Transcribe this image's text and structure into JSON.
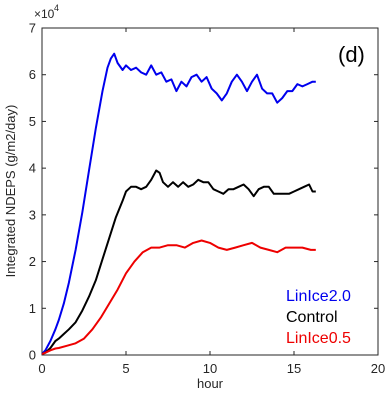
{
  "chart_data": {
    "type": "line",
    "panel_label": "(d)",
    "xlabel": "hour",
    "ylabel": "Integrated NDEPS (g/m2/day)",
    "exponent_label": "×10",
    "exponent_power": "4",
    "xlim": [
      0,
      20
    ],
    "ylim": [
      0,
      7
    ],
    "x_ticks": [
      0,
      5,
      10,
      15,
      20
    ],
    "x_tick_labels": [
      "0",
      "5",
      "10",
      "15",
      "20"
    ],
    "y_ticks": [
      0,
      1,
      2,
      3,
      4,
      5,
      6,
      7
    ],
    "y_tick_labels": [
      "0",
      "1",
      "2",
      "3",
      "4",
      "5",
      "6",
      "7"
    ],
    "y_unit_multiplier": 10000,
    "grid": false,
    "legend_position": "bottom-right",
    "series": [
      {
        "name": "LinIce2.0",
        "color": "#0000ee",
        "x": [
          0,
          0.2,
          0.5,
          0.8,
          1.0,
          1.3,
          1.6,
          2.0,
          2.4,
          2.8,
          3.2,
          3.6,
          3.9,
          4.1,
          4.3,
          4.5,
          4.8,
          5.0,
          5.3,
          5.6,
          5.9,
          6.2,
          6.5,
          6.8,
          7.1,
          7.4,
          7.7,
          8.0,
          8.3,
          8.6,
          8.9,
          9.2,
          9.5,
          9.8,
          10.1,
          10.4,
          10.7,
          11.0,
          11.3,
          11.6,
          11.9,
          12.2,
          12.5,
          12.8,
          13.1,
          13.4,
          13.7,
          14.0,
          14.3,
          14.6,
          14.9,
          15.2,
          15.5,
          15.8,
          16.1,
          16.3
        ],
        "values": [
          0.02,
          0.1,
          0.3,
          0.55,
          0.75,
          1.1,
          1.55,
          2.25,
          3.05,
          3.95,
          4.85,
          5.65,
          6.15,
          6.35,
          6.45,
          6.25,
          6.1,
          6.2,
          6.1,
          6.15,
          6.05,
          6.0,
          6.2,
          6.0,
          6.05,
          5.85,
          5.9,
          5.65,
          5.85,
          5.75,
          5.95,
          6.0,
          5.85,
          5.95,
          5.7,
          5.6,
          5.45,
          5.6,
          5.85,
          6.0,
          5.85,
          5.65,
          5.85,
          6.0,
          5.7,
          5.6,
          5.6,
          5.4,
          5.5,
          5.65,
          5.65,
          5.8,
          5.75,
          5.8,
          5.85,
          5.85
        ]
      },
      {
        "name": "Control",
        "color": "#000000",
        "x": [
          0,
          0.2,
          0.5,
          0.8,
          1.0,
          1.3,
          1.6,
          2.0,
          2.4,
          2.8,
          3.2,
          3.6,
          4.0,
          4.4,
          4.8,
          5.0,
          5.3,
          5.6,
          5.9,
          6.2,
          6.5,
          6.8,
          7.0,
          7.2,
          7.5,
          7.8,
          8.1,
          8.4,
          8.7,
          9.0,
          9.3,
          9.6,
          9.9,
          10.2,
          10.5,
          10.8,
          11.1,
          11.4,
          11.7,
          12.0,
          12.3,
          12.6,
          12.9,
          13.2,
          13.5,
          13.8,
          14.1,
          14.4,
          14.7,
          15.0,
          15.3,
          15.6,
          15.9,
          16.1,
          16.3
        ],
        "values": [
          0.02,
          0.05,
          0.15,
          0.3,
          0.35,
          0.45,
          0.55,
          0.7,
          0.95,
          1.25,
          1.6,
          2.05,
          2.5,
          2.95,
          3.3,
          3.5,
          3.6,
          3.6,
          3.55,
          3.6,
          3.75,
          3.95,
          3.9,
          3.7,
          3.6,
          3.7,
          3.6,
          3.7,
          3.6,
          3.65,
          3.75,
          3.7,
          3.7,
          3.55,
          3.5,
          3.45,
          3.55,
          3.55,
          3.6,
          3.65,
          3.55,
          3.4,
          3.55,
          3.6,
          3.6,
          3.45,
          3.45,
          3.45,
          3.45,
          3.5,
          3.55,
          3.6,
          3.65,
          3.5,
          3.5
        ]
      },
      {
        "name": "LinIce0.5",
        "color": "#ee0000",
        "x": [
          0,
          0.2,
          0.5,
          0.8,
          1.0,
          1.5,
          2.0,
          2.5,
          3.0,
          3.5,
          4.0,
          4.5,
          5.0,
          5.5,
          6.0,
          6.5,
          7.0,
          7.5,
          8.0,
          8.5,
          9.0,
          9.5,
          10.0,
          10.5,
          11.0,
          11.5,
          12.0,
          12.5,
          13.0,
          13.5,
          14.0,
          14.5,
          15.0,
          15.5,
          16.0,
          16.3
        ],
        "values": [
          0.02,
          0.05,
          0.1,
          0.14,
          0.15,
          0.2,
          0.25,
          0.35,
          0.55,
          0.8,
          1.1,
          1.4,
          1.75,
          2.0,
          2.2,
          2.3,
          2.3,
          2.35,
          2.35,
          2.3,
          2.4,
          2.45,
          2.4,
          2.3,
          2.25,
          2.3,
          2.35,
          2.4,
          2.3,
          2.25,
          2.2,
          2.3,
          2.3,
          2.3,
          2.25,
          2.25
        ]
      }
    ]
  }
}
